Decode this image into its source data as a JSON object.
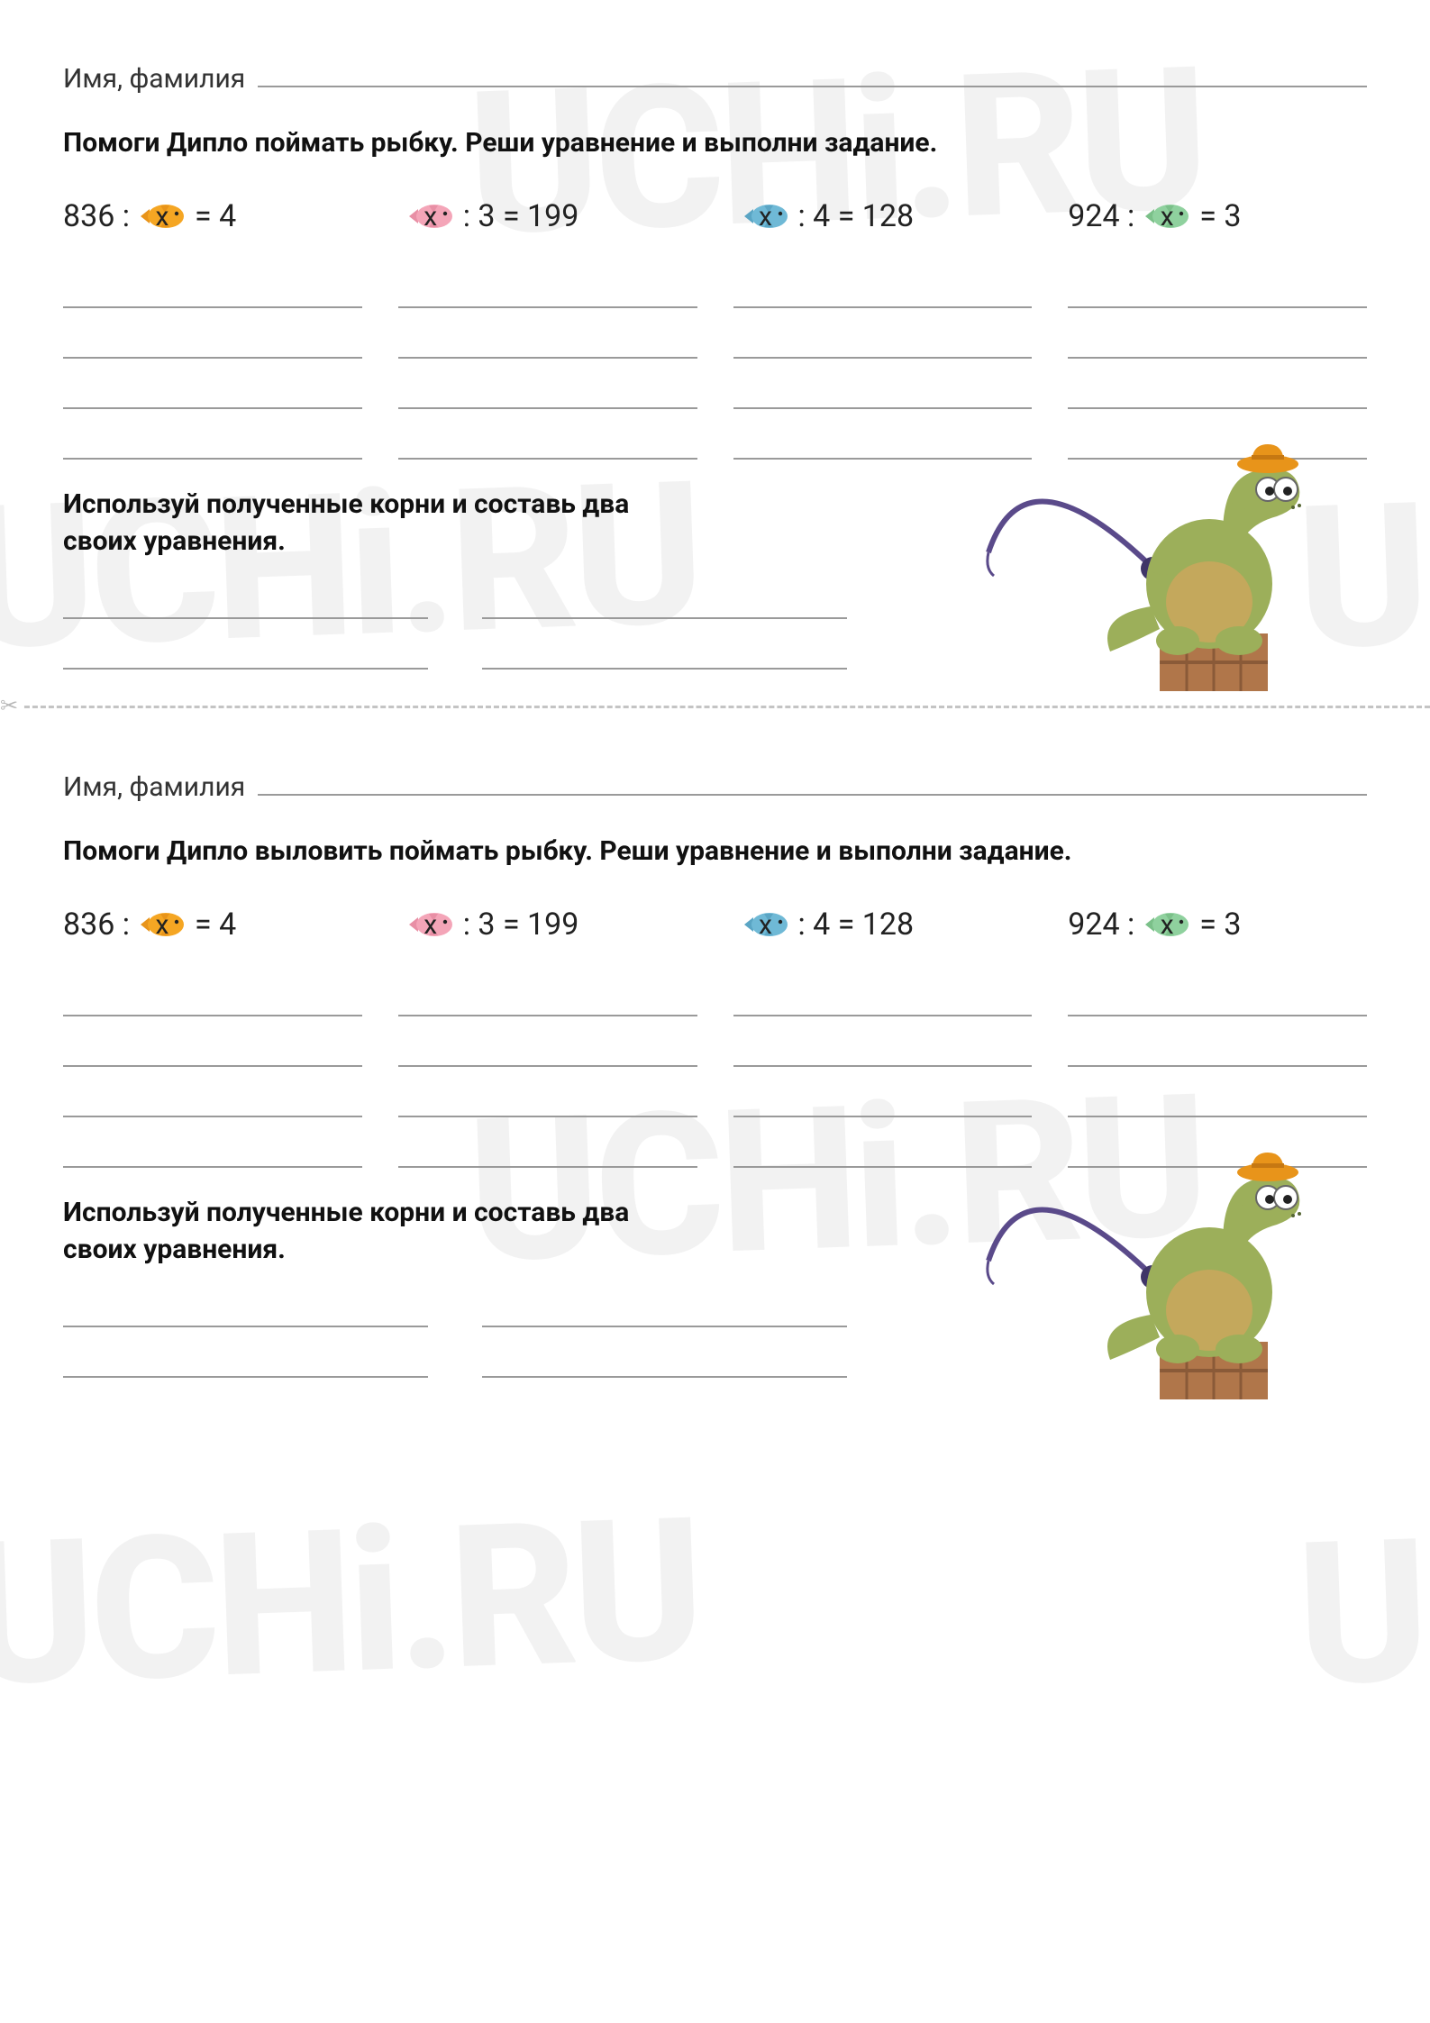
{
  "watermark_text": "UCHi.RU",
  "watermark_color": "#e8e8e8",
  "line_color": "#9a9a9a",
  "cut_line_color": "#c4c4c4",
  "text_color": "#111111",
  "background_color": "#ffffff",
  "fish_colors": {
    "orange": {
      "body": "#f5a623",
      "fin": "#e8941a"
    },
    "pink": {
      "body": "#f4a5b8",
      "fin": "#e88fa5"
    },
    "blue": {
      "body": "#6fb9d6",
      "fin": "#5aa5c4"
    },
    "green": {
      "body": "#8fd19e",
      "fin": "#7bc089"
    }
  },
  "dino": {
    "body_color": "#9caf5a",
    "belly_color": "#c4a85c",
    "hat_color": "#e8941a",
    "rod_color": "#5a4a8a",
    "reel_color": "#3f3568",
    "crate_color": "#b0764a",
    "eye_white": "#ffffff",
    "eye_dark": "#222222"
  },
  "sections": [
    {
      "name_label": "Имя, фамилия",
      "instruction": "Помоги Дипло поймать рыбку. Реши уравнение и выполни задание.",
      "equations": [
        {
          "before": "836 :",
          "var": "x",
          "after": "= 4",
          "fish": "orange"
        },
        {
          "before": "",
          "var": "x",
          "after": ":  3  = 199",
          "fish": "pink"
        },
        {
          "before": "",
          "var": "x",
          "after": ": 4 = 128",
          "fish": "blue"
        },
        {
          "before": "924 :",
          "var": "x",
          "after": "= 3",
          "fish": "green"
        }
      ],
      "work_lines_per_col": 4,
      "second_instruction": "Используй полученные корни и составь два своих уравнения.",
      "answer_lines_per_col": 2
    },
    {
      "name_label": "Имя, фамилия",
      "instruction": "Помоги Дипло выловить поймать рыбку. Реши уравнение и выполни задание.",
      "equations": [
        {
          "before": "836 :",
          "var": "x",
          "after": "= 4",
          "fish": "orange"
        },
        {
          "before": "",
          "var": "x",
          "after": ":  3  = 199",
          "fish": "pink"
        },
        {
          "before": "",
          "var": "x",
          "after": ": 4 = 128",
          "fish": "blue"
        },
        {
          "before": "924 :",
          "var": "x",
          "after": "= 3",
          "fish": "green"
        }
      ],
      "work_lines_per_col": 4,
      "second_instruction": "Используй полученные корни и составь два своих уравнения.",
      "answer_lines_per_col": 2
    }
  ]
}
